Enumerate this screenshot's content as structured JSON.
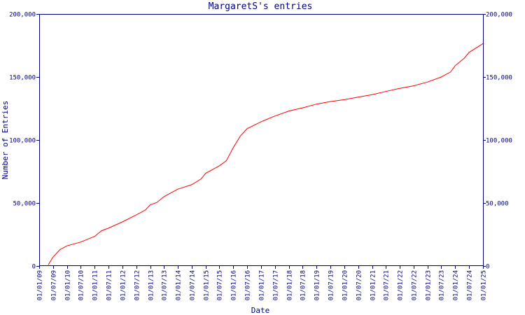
{
  "chart_data": {
    "type": "line",
    "title": "MargaretS's entries",
    "xlabel": "Date",
    "ylabel": "Number of Entries",
    "ylim": [
      0,
      200000
    ],
    "y_ticks": [
      0,
      50000,
      100000,
      150000,
      200000
    ],
    "y_tick_labels": [
      "0",
      "50,000",
      "100,000",
      "150,000",
      "200,000"
    ],
    "y_axis_right": true,
    "xlim": [
      "2009-01-01",
      "2025-01-01"
    ],
    "x_ticks": [
      "2009-01-01",
      "2009-07-01",
      "2010-01-01",
      "2010-07-01",
      "2011-01-01",
      "2011-07-01",
      "2012-01-01",
      "2012-07-01",
      "2013-01-01",
      "2013-07-01",
      "2014-01-01",
      "2014-07-01",
      "2015-01-01",
      "2015-07-01",
      "2016-01-01",
      "2016-07-01",
      "2017-01-01",
      "2017-07-01",
      "2018-01-01",
      "2018-07-01",
      "2019-01-01",
      "2019-07-01",
      "2020-01-01",
      "2020-07-01",
      "2021-01-01",
      "2021-07-01",
      "2022-01-01",
      "2022-07-01",
      "2023-01-01",
      "2023-07-01",
      "2024-01-01",
      "2024-07-01",
      "2025-01-01"
    ],
    "x_tick_labels": [
      "01/01/09",
      "01/07/09",
      "01/01/10",
      "01/07/10",
      "01/01/11",
      "01/07/11",
      "01/01/12",
      "01/07/12",
      "01/01/13",
      "01/07/13",
      "01/01/14",
      "01/07/14",
      "01/01/15",
      "01/07/15",
      "01/01/16",
      "01/07/16",
      "01/01/17",
      "01/07/17",
      "01/01/18",
      "01/07/18",
      "01/01/19",
      "01/07/19",
      "01/01/20",
      "01/07/20",
      "01/01/21",
      "01/07/21",
      "01/01/22",
      "01/07/22",
      "01/01/23",
      "01/07/23",
      "01/01/24",
      "01/07/24",
      "01/01/25"
    ],
    "grid": false,
    "series": [
      {
        "color": "#ff0000",
        "points": [
          [
            "2009-05-01",
            1000
          ],
          [
            "2009-07-01",
            7000
          ],
          [
            "2009-10-01",
            13000
          ],
          [
            "2010-01-01",
            16000
          ],
          [
            "2010-07-01",
            19000
          ],
          [
            "2011-01-01",
            23500
          ],
          [
            "2011-04-01",
            28000
          ],
          [
            "2011-07-01",
            30000
          ],
          [
            "2012-01-01",
            35000
          ],
          [
            "2012-07-01",
            40500
          ],
          [
            "2012-11-01",
            44500
          ],
          [
            "2013-01-01",
            48500
          ],
          [
            "2013-04-01",
            50500
          ],
          [
            "2013-07-01",
            55000
          ],
          [
            "2014-01-01",
            61000
          ],
          [
            "2014-07-01",
            64500
          ],
          [
            "2014-11-01",
            69000
          ],
          [
            "2015-01-01",
            73500
          ],
          [
            "2015-07-01",
            79500
          ],
          [
            "2015-10-01",
            83500
          ],
          [
            "2016-01-01",
            94000
          ],
          [
            "2016-04-01",
            103000
          ],
          [
            "2016-07-01",
            109000
          ],
          [
            "2017-01-01",
            114500
          ],
          [
            "2017-07-01",
            119000
          ],
          [
            "2018-01-01",
            123000
          ],
          [
            "2018-07-01",
            125500
          ],
          [
            "2019-01-01",
            128500
          ],
          [
            "2019-07-01",
            130500
          ],
          [
            "2020-01-01",
            132000
          ],
          [
            "2020-07-01",
            134000
          ],
          [
            "2021-01-01",
            136000
          ],
          [
            "2021-07-01",
            138500
          ],
          [
            "2022-01-01",
            141000
          ],
          [
            "2022-07-01",
            143000
          ],
          [
            "2023-01-01",
            146000
          ],
          [
            "2023-07-01",
            150000
          ],
          [
            "2023-11-01",
            154000
          ],
          [
            "2024-01-01",
            159000
          ],
          [
            "2024-05-01",
            165000
          ],
          [
            "2024-07-01",
            169500
          ],
          [
            "2025-01-01",
            176500
          ]
        ]
      }
    ]
  },
  "colors": {
    "axis": "#000080",
    "line": "#ff0000",
    "background": "#ffffff"
  }
}
